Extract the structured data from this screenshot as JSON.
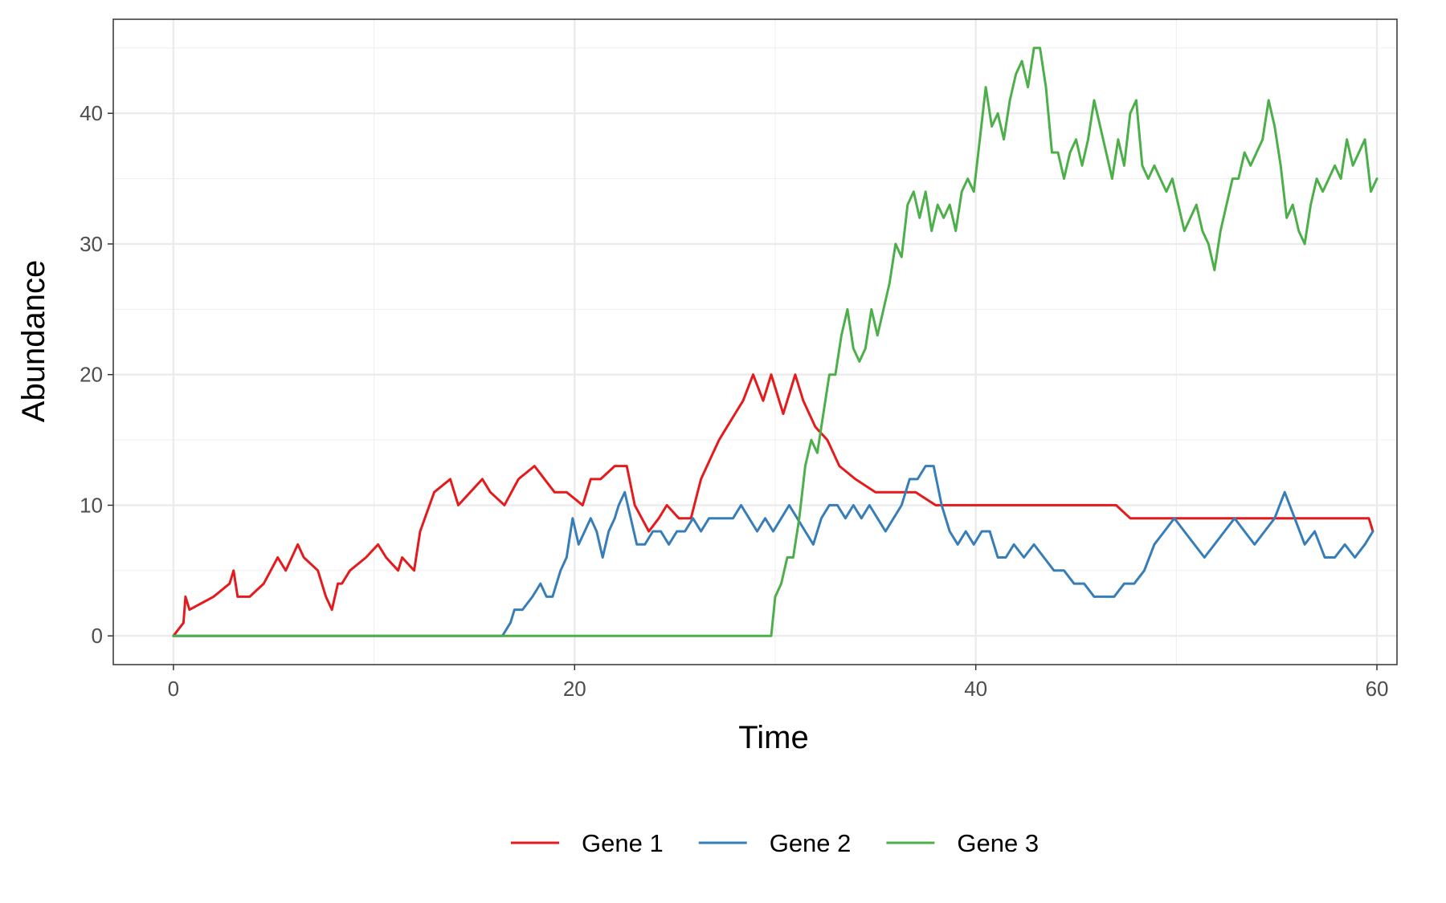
{
  "chart_data": {
    "type": "line",
    "title": "",
    "xlabel": "Time",
    "ylabel": "Abundance",
    "xlim": [
      -3,
      61
    ],
    "ylim": [
      -2.2,
      47.2
    ],
    "x_ticks": [
      0,
      20,
      40,
      60
    ],
    "x_tick_labels": [
      "0",
      "20",
      "40",
      "60"
    ],
    "y_ticks": [
      0,
      10,
      20,
      30,
      40
    ],
    "y_tick_labels": [
      "0",
      "10",
      "20",
      "30",
      "40"
    ],
    "grid": true,
    "legend_position": "bottom",
    "series": [
      {
        "name": "Gene 1",
        "color": "#e41a1c",
        "x": [
          0,
          0.5,
          0.6,
          0.8,
          2.0,
          2.8,
          3.0,
          3.2,
          3.8,
          4.5,
          5.2,
          5.6,
          6.2,
          6.5,
          7.2,
          7.6,
          7.9,
          8.2,
          8.4,
          8.8,
          9.6,
          10.2,
          10.6,
          11.2,
          11.4,
          12.0,
          12.3,
          13.0,
          13.8,
          14.2,
          14.8,
          15.4,
          15.8,
          16.5,
          17.2,
          18.0,
          18.5,
          19.0,
          19.6,
          20.4,
          20.8,
          21.3,
          22.0,
          22.6,
          23.0,
          23.7,
          24.2,
          24.6,
          25.2,
          25.8,
          26.3,
          26.9,
          27.2,
          27.6,
          28.0,
          28.4,
          28.9,
          29.4,
          29.8,
          30.0,
          30.4,
          31.0,
          31.4,
          32.0,
          32.6,
          33.2,
          34.0,
          35.0,
          36.0,
          37.0,
          38.0,
          39.0,
          40.0,
          42.0,
          44.0,
          46.0,
          47.0,
          47.7,
          49.0,
          51.0,
          53.0,
          55.0,
          57.0,
          59.0,
          59.6,
          59.8
        ],
        "values": [
          0,
          1,
          3,
          2,
          3,
          4,
          5,
          3,
          3,
          4,
          6,
          5,
          7,
          6,
          5,
          3,
          2,
          4,
          4,
          5,
          6,
          7,
          6,
          5,
          6,
          5,
          8,
          11,
          12,
          10,
          11,
          12,
          11,
          10,
          12,
          13,
          12,
          11,
          11,
          10,
          12,
          12,
          13,
          13,
          10,
          8,
          9,
          10,
          9,
          9,
          12,
          14,
          15,
          16,
          17,
          18,
          20,
          18,
          20,
          19,
          17,
          20,
          18,
          16,
          15,
          13,
          12,
          11,
          11,
          11,
          10,
          10,
          10,
          10,
          10,
          10,
          10,
          9,
          9,
          9,
          9,
          9,
          9,
          9,
          9,
          8
        ]
      },
      {
        "name": "Gene 2",
        "color": "#377eb8",
        "x": [
          0,
          16.4,
          16.8,
          17.0,
          17.4,
          17.9,
          18.3,
          18.6,
          18.9,
          19.3,
          19.6,
          19.9,
          20.2,
          20.5,
          20.8,
          21.1,
          21.4,
          21.7,
          22.0,
          22.2,
          22.5,
          22.8,
          23.1,
          23.5,
          23.9,
          24.3,
          24.7,
          25.1,
          25.5,
          25.9,
          26.3,
          26.7,
          27.1,
          27.5,
          27.9,
          28.3,
          28.7,
          29.1,
          29.5,
          29.9,
          30.3,
          30.7,
          31.1,
          31.5,
          31.9,
          32.3,
          32.7,
          33.1,
          33.5,
          33.9,
          34.3,
          34.7,
          35.1,
          35.5,
          35.9,
          36.3,
          36.7,
          37.1,
          37.5,
          37.9,
          38.3,
          38.7,
          39.1,
          39.5,
          39.9,
          40.3,
          40.7,
          41.1,
          41.5,
          41.9,
          42.4,
          42.9,
          43.4,
          43.9,
          44.4,
          44.9,
          45.4,
          45.9,
          46.4,
          46.9,
          47.4,
          47.9,
          48.4,
          48.9,
          49.4,
          49.9,
          50.4,
          50.9,
          51.4,
          51.9,
          52.4,
          52.9,
          53.4,
          53.9,
          54.4,
          54.9,
          55.4,
          55.9,
          56.4,
          56.9,
          57.4,
          57.9,
          58.4,
          58.9,
          59.4,
          59.8
        ],
        "values": [
          0,
          0,
          1,
          2,
          2,
          3,
          4,
          3,
          3,
          5,
          6,
          9,
          7,
          8,
          9,
          8,
          6,
          8,
          9,
          10,
          11,
          9,
          7,
          7,
          8,
          8,
          7,
          8,
          8,
          9,
          8,
          9,
          9,
          9,
          9,
          10,
          9,
          8,
          9,
          8,
          9,
          10,
          9,
          8,
          7,
          9,
          10,
          10,
          9,
          10,
          9,
          10,
          9,
          8,
          9,
          10,
          12,
          12,
          13,
          13,
          10,
          8,
          7,
          8,
          7,
          8,
          8,
          6,
          6,
          7,
          6,
          7,
          6,
          5,
          5,
          4,
          4,
          3,
          3,
          3,
          4,
          4,
          5,
          7,
          8,
          9,
          8,
          7,
          6,
          7,
          8,
          9,
          8,
          7,
          8,
          9,
          11,
          9,
          7,
          8,
          6,
          6,
          7,
          6,
          7,
          8
        ]
      },
      {
        "name": "Gene 3",
        "color": "#4daf4a",
        "x": [
          0,
          29.8,
          30.0,
          30.3,
          30.6,
          30.9,
          31.2,
          31.5,
          31.8,
          32.1,
          32.4,
          32.7,
          33.0,
          33.3,
          33.6,
          33.9,
          34.2,
          34.5,
          34.8,
          35.1,
          35.4,
          35.7,
          36.0,
          36.3,
          36.6,
          36.9,
          37.2,
          37.5,
          37.8,
          38.1,
          38.4,
          38.7,
          39.0,
          39.3,
          39.6,
          39.9,
          40.2,
          40.5,
          40.8,
          41.1,
          41.4,
          41.7,
          42.0,
          42.3,
          42.6,
          42.9,
          43.2,
          43.5,
          43.8,
          44.1,
          44.4,
          44.7,
          45.0,
          45.3,
          45.6,
          45.9,
          46.2,
          46.5,
          46.8,
          47.1,
          47.4,
          47.7,
          48.0,
          48.3,
          48.6,
          48.9,
          49.2,
          49.5,
          49.8,
          50.1,
          50.4,
          50.7,
          51.0,
          51.3,
          51.6,
          51.9,
          52.2,
          52.5,
          52.8,
          53.1,
          53.4,
          53.7,
          54.0,
          54.3,
          54.6,
          54.9,
          55.2,
          55.5,
          55.8,
          56.1,
          56.4,
          56.7,
          57.0,
          57.3,
          57.6,
          57.9,
          58.2,
          58.5,
          58.8,
          59.1,
          59.4,
          59.7,
          60.0
        ],
        "values": [
          0,
          0,
          3,
          4,
          6,
          6,
          9,
          13,
          15,
          14,
          17,
          20,
          20,
          23,
          25,
          22,
          21,
          22,
          25,
          23,
          25,
          27,
          30,
          29,
          33,
          34,
          32,
          34,
          31,
          33,
          32,
          33,
          31,
          34,
          35,
          34,
          38,
          42,
          39,
          40,
          38,
          41,
          43,
          44,
          42,
          45,
          45,
          42,
          37,
          37,
          35,
          37,
          38,
          36,
          38,
          41,
          39,
          37,
          35,
          38,
          36,
          40,
          41,
          36,
          35,
          36,
          35,
          34,
          35,
          33,
          31,
          32,
          33,
          31,
          30,
          28,
          31,
          33,
          35,
          35,
          37,
          36,
          37,
          38,
          41,
          39,
          36,
          32,
          33,
          31,
          30,
          33,
          35,
          34,
          35,
          36,
          35,
          38,
          36,
          37,
          38,
          34,
          35
        ]
      }
    ]
  }
}
